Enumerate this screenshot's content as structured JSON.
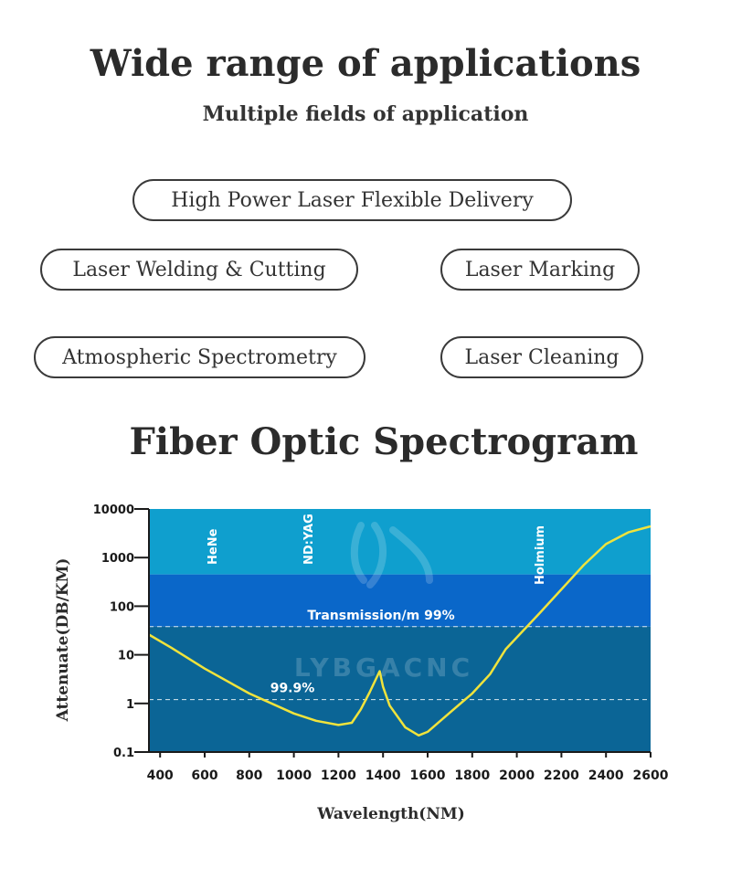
{
  "header": {
    "title": "Wide range of applications",
    "subtitle": "Multiple fields of application"
  },
  "applications": [
    "High Power Laser Flexible Delivery",
    "Laser Welding & Cutting",
    "Laser Marking",
    "Atmospheric Spectrometry",
    "Laser Cleaning"
  ],
  "section_title": "Fiber Optic Spectrogram",
  "watermark": "LYBGACNC",
  "colors": {
    "band_top": "#0f9fce",
    "band_middle": "#0a67c9",
    "band_bottom": "#0b6596",
    "curve": "#f0e33c",
    "text_dark": "#2b2b2b"
  },
  "chart_data": {
    "type": "line",
    "xlabel": "Wavelength(NM)",
    "ylabel": "Attenuate(DB/KM)",
    "x_ticks": [
      400,
      600,
      800,
      1000,
      1200,
      1400,
      1600,
      1800,
      2000,
      2200,
      2400,
      2600
    ],
    "y_ticks": [
      {
        "value": 0.1,
        "label": "0.1"
      },
      {
        "value": 1,
        "label": "1"
      },
      {
        "value": 10,
        "label": "10"
      },
      {
        "value": 100,
        "label": "100"
      },
      {
        "value": 1000,
        "label": "1000"
      },
      {
        "value": 10000,
        "label": "10000"
      }
    ],
    "xlim": [
      350,
      2600
    ],
    "ylim": [
      0.1,
      10000
    ],
    "y_scale": "log",
    "band_labels": [
      {
        "text": "HeNe",
        "x": 633
      },
      {
        "text": "ND:YAG",
        "x": 1064
      },
      {
        "text": "Holmium",
        "x": 2100
      }
    ],
    "reference_lines": [
      {
        "label": "Transmission/m 99%",
        "y": 38
      },
      {
        "label": "99.9%",
        "y": 1.2
      }
    ],
    "band_boundaries": [
      450,
      38
    ],
    "series": [
      {
        "x": [
          350,
          450,
          600,
          800,
          1000,
          1100,
          1200,
          1260,
          1300,
          1340,
          1385,
          1400,
          1430,
          1500,
          1560,
          1600,
          1700,
          1800,
          1880,
          1950,
          2100,
          2300,
          2400,
          2500,
          2600
        ],
        "y": [
          26,
          14,
          5.2,
          1.6,
          0.62,
          0.44,
          0.36,
          0.4,
          0.75,
          1.7,
          4.6,
          2.2,
          0.9,
          0.32,
          0.22,
          0.26,
          0.65,
          1.6,
          4.0,
          13,
          70,
          700,
          1900,
          3300,
          4400
        ]
      }
    ]
  }
}
